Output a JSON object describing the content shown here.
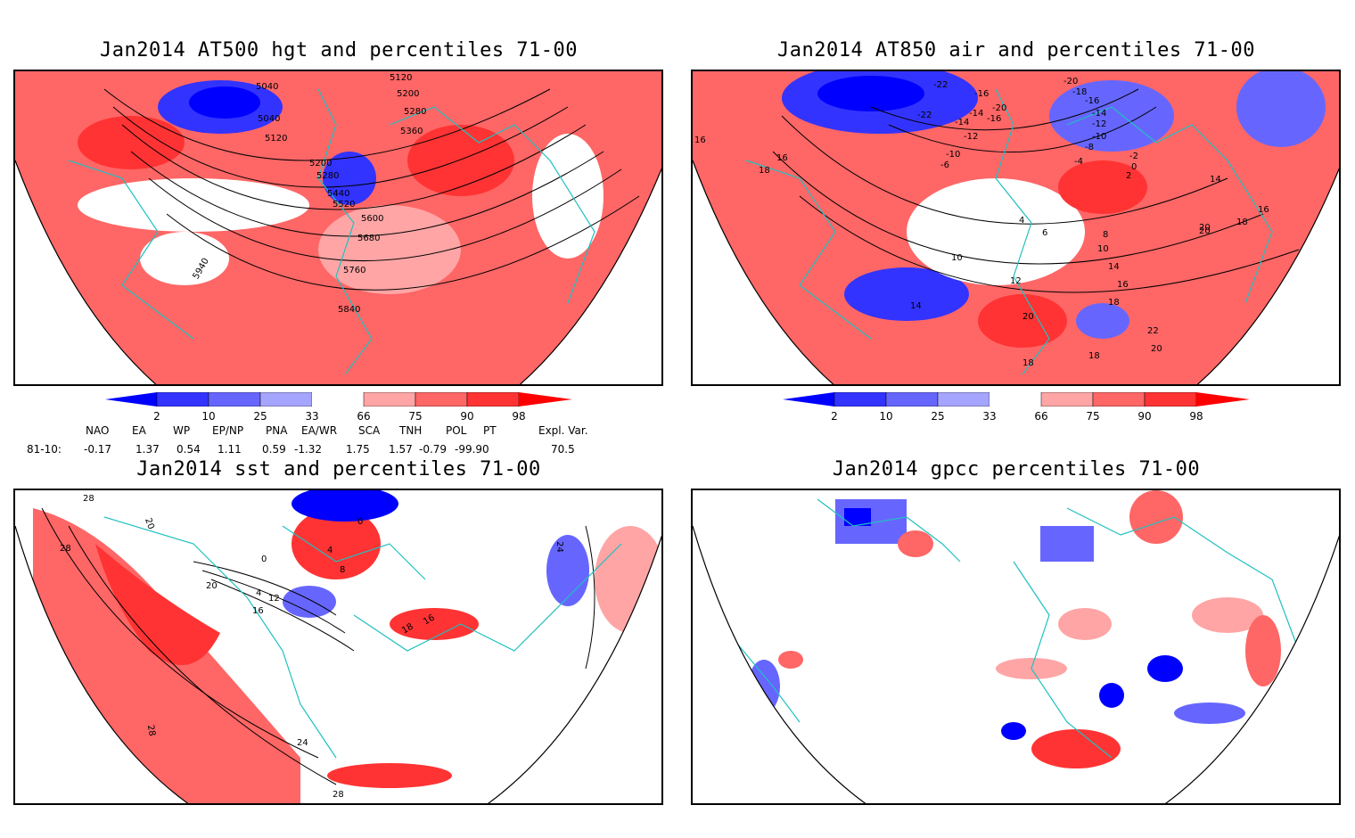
{
  "panels": [
    {
      "title": "Jan2014 AT500 hgt and percentiles 71-00",
      "labels": [
        "5040",
        "5120",
        "5200",
        "5280",
        "5360",
        "5040",
        "5120",
        "5200",
        "5280",
        "5440",
        "5520",
        "5600",
        "5680",
        "5760",
        "5840",
        "5940"
      ]
    },
    {
      "title": "Jan2014 AT850 air and percentiles 71-00",
      "labels": [
        "-22",
        "-16",
        "-20",
        "-14",
        "-22",
        "-14",
        "-16",
        "-12",
        "-10",
        "-6",
        "16",
        "18",
        "16",
        "14",
        "4",
        "6",
        "10",
        "12",
        "14",
        "14",
        "16",
        "18",
        "20",
        "18",
        "20",
        "22",
        "18",
        "20",
        "-20",
        "-18",
        "-16",
        "-14",
        "-12",
        "-10",
        "-8",
        "-4",
        "-2",
        "0",
        "2",
        "8",
        "10",
        "16",
        "18",
        "20"
      ]
    },
    {
      "title": "Jan2014 sst and percentiles 71-00",
      "labels": [
        "28",
        "20",
        "28",
        "0",
        "4",
        "8",
        "0",
        "20",
        "12",
        "16",
        "4",
        "18",
        "16",
        "24",
        "24",
        "28",
        "28"
      ]
    },
    {
      "title": "Jan2014 gpcc percentiles 71-00",
      "labels": []
    }
  ],
  "colorbar": {
    "ticks": [
      "2",
      "10",
      "25",
      "33",
      "66",
      "75",
      "90",
      "98"
    ],
    "colors": {
      "blue_strong": "#0000ff",
      "blue_mid": "#3333ff",
      "blue_light": "#6666ff",
      "blue_pale": "#a5a5ff",
      "red_pale": "#ffa5a5",
      "red_light": "#ff6666",
      "red_mid": "#ff3333",
      "red_strong": "#ff0000"
    }
  },
  "indices": {
    "names": [
      "NAO",
      "EA",
      "WP",
      "EP/NP",
      "PNA",
      "EA/WR",
      "SCA",
      "TNH",
      "POL",
      "PT",
      "Expl. Var."
    ],
    "row_label": "81-10:",
    "values": [
      "-0.17",
      "1.37",
      "0.54",
      "1.11",
      "0.59",
      "-1.32",
      "1.75",
      "1.57",
      "-0.79",
      "-99.90",
      "70.5"
    ]
  },
  "map_colors": {
    "coast": "#20c0c0",
    "contour": "#000000",
    "grid": "#999999"
  }
}
